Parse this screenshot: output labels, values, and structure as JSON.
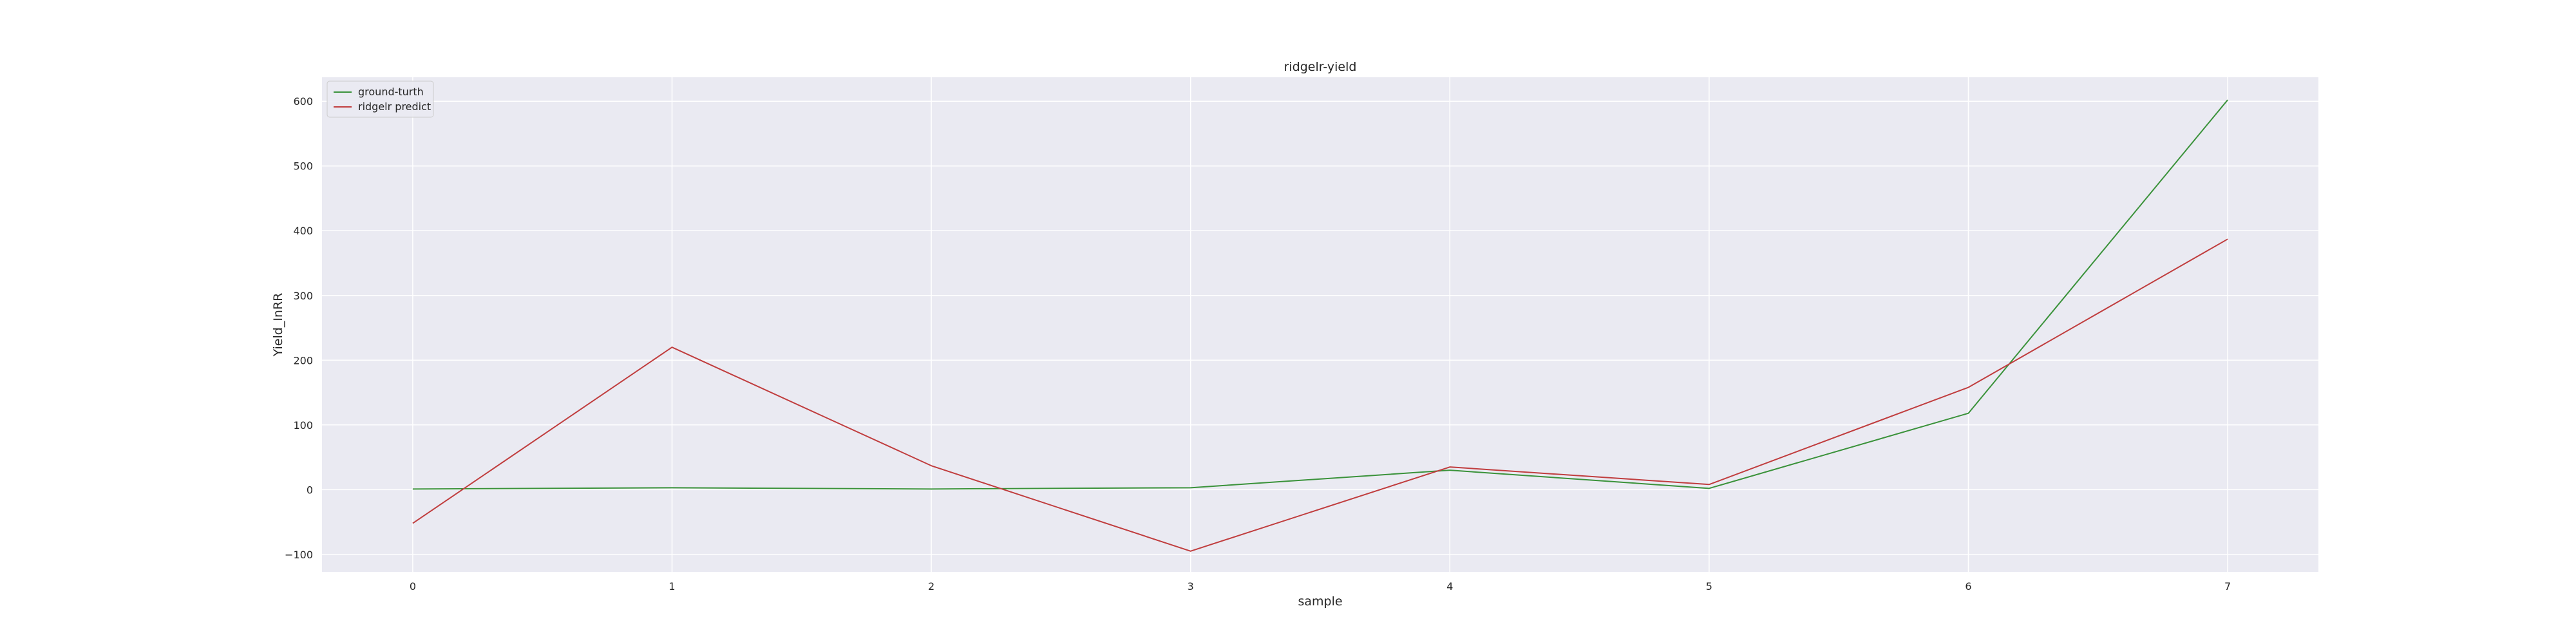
{
  "chart_data": {
    "type": "line",
    "title": "ridgelr-yield",
    "xlabel": "sample",
    "ylabel": "Yield_InRR",
    "x": [
      0,
      1,
      2,
      3,
      4,
      5,
      6,
      7
    ],
    "xticks": [
      0,
      1,
      2,
      3,
      4,
      5,
      6,
      7
    ],
    "yticks": [
      -100,
      0,
      100,
      200,
      300,
      400,
      500,
      600
    ],
    "xlim": [
      -0.35,
      7.35
    ],
    "ylim": [
      -127,
      637
    ],
    "grid": true,
    "legend_position": "top-left",
    "series": [
      {
        "name": "ground-turth",
        "color": "#3a923a",
        "values": [
          1,
          3,
          1,
          3,
          30,
          2,
          118,
          602
        ]
      },
      {
        "name": "ridgelr predict",
        "color": "#c03d3e",
        "values": [
          -52,
          220,
          37,
          -95,
          35,
          8,
          158,
          387
        ]
      }
    ],
    "background": "#eaeaf2",
    "grid_color": "#ffffff"
  }
}
